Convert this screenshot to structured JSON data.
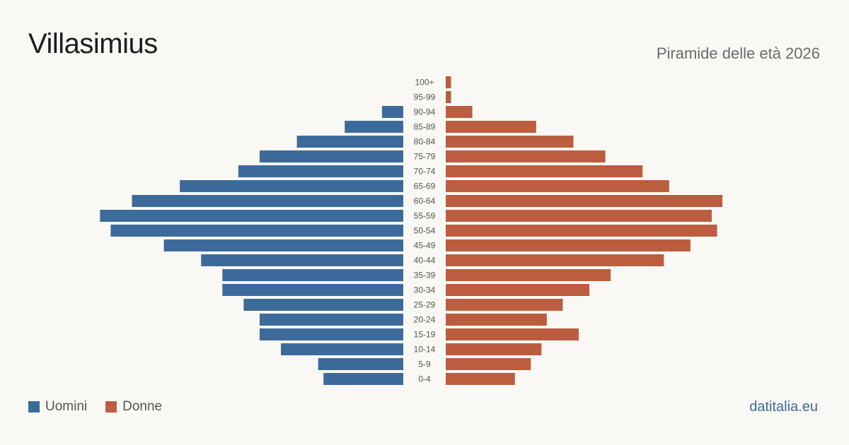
{
  "title": "Villasimius",
  "subtitle": "Piramide delle età 2026",
  "source": "datitalia.eu",
  "colors": {
    "men": "#3c6b9b",
    "women": "#bb5d3e",
    "background": "#faf8f4"
  },
  "legend": [
    {
      "label": "Uomini",
      "color": "#3c6b9b"
    },
    {
      "label": "Donne",
      "color": "#bb5d3e"
    }
  ],
  "chart_data": {
    "type": "bar",
    "orientation": "horizontal",
    "categories": [
      "100+",
      "95-99",
      "90-94",
      "85-89",
      "80-84",
      "75-79",
      "70-74",
      "65-69",
      "60-64",
      "55-59",
      "50-54",
      "45-49",
      "40-44",
      "35-39",
      "30-34",
      "25-29",
      "20-24",
      "15-19",
      "10-14",
      "5-9",
      "0-4"
    ],
    "series": [
      {
        "name": "Uomini",
        "values": [
          0,
          0,
          4,
          11,
          20,
          27,
          31,
          42,
          51,
          57,
          55,
          45,
          38,
          34,
          34,
          30,
          27,
          27,
          23,
          16,
          15
        ]
      },
      {
        "name": "Donne",
        "values": [
          1,
          1,
          5,
          17,
          24,
          30,
          37,
          42,
          52,
          50,
          51,
          46,
          41,
          31,
          27,
          22,
          19,
          25,
          18,
          16,
          13
        ]
      }
    ],
    "legend_position": "bottom-left",
    "grid": false
  }
}
